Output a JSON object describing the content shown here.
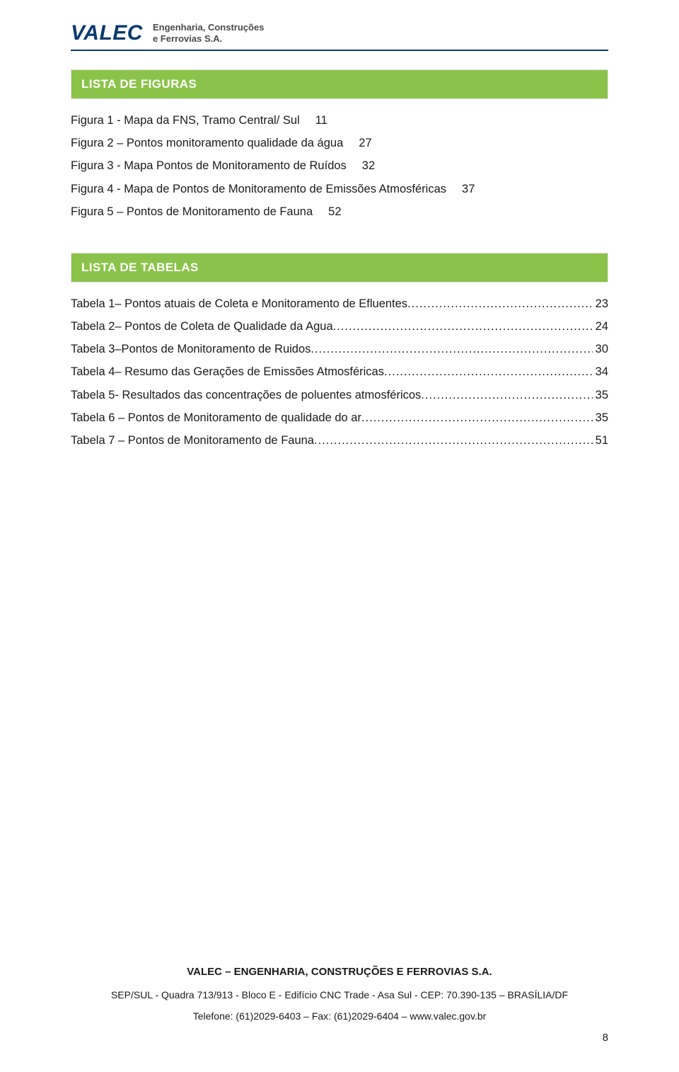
{
  "header": {
    "logo_text": "VALEC",
    "logo_sub_line1": "Engenharia, Construções",
    "logo_sub_line2": "e Ferrovias S.A."
  },
  "sections": {
    "figures_title": "LISTA DE FIGURAS",
    "tables_title": "LISTA DE TABELAS"
  },
  "figures": [
    {
      "label": "Figura 1 - Mapa da FNS, Tramo Central/ Sul",
      "page": "11",
      "dotted": false
    },
    {
      "label": "Figura 2 – Pontos monitoramento qualidade da água",
      "page": "27",
      "dotted": false
    },
    {
      "label": "Figura 3 - Mapa Pontos de Monitoramento de Ruídos",
      "page": "32",
      "dotted": false
    },
    {
      "label": "Figura 4 - Mapa de Pontos de Monitoramento de Emissões Atmosféricas",
      "page": "37",
      "dotted": false
    },
    {
      "label": "Figura 5 – Pontos de Monitoramento de Fauna",
      "page": "52",
      "dotted": false
    }
  ],
  "tables": [
    {
      "label": "Tabela 1– Pontos atuais de Coleta e Monitoramento de Efluentes",
      "page": "23",
      "dotted": true
    },
    {
      "label": "Tabela 2– Pontos de Coleta de Qualidade da Agua",
      "page": "24",
      "dotted": true
    },
    {
      "label": "Tabela 3–Pontos de Monitoramento de Ruidos",
      "page": "30",
      "dotted": true
    },
    {
      "label": "Tabela 4– Resumo das Gerações de Emissões Atmosféricas",
      "page": "34",
      "dotted": true
    },
    {
      "label": "Tabela 5- Resultados das concentrações de poluentes atmosféricos",
      "page": "35",
      "dotted": true
    },
    {
      "label": "Tabela 6 – Pontos de Monitoramento de qualidade do ar",
      "page": "35",
      "dotted": true
    },
    {
      "label": "Tabela 7 – Pontos de Monitoramento de Fauna",
      "page": "51",
      "dotted": true
    }
  ],
  "footer": {
    "title": "VALEC – ENGENHARIA, CONSTRUÇÕES E FERROVIAS S.A.",
    "address": "SEP/SUL - Quadra 713/913 - Bloco E - Edifício CNC Trade - Asa Sul - CEP: 70.390-135 – BRASÍLIA/DF",
    "contact": "Telefone: (61)2029-6403 – Fax: (61)2029-6404 – www.valec.gov.br",
    "page_number": "8"
  },
  "colors": {
    "band": "#8bc34a",
    "logo": "#083a6e",
    "text": "#1a1a1a",
    "background": "#ffffff"
  }
}
